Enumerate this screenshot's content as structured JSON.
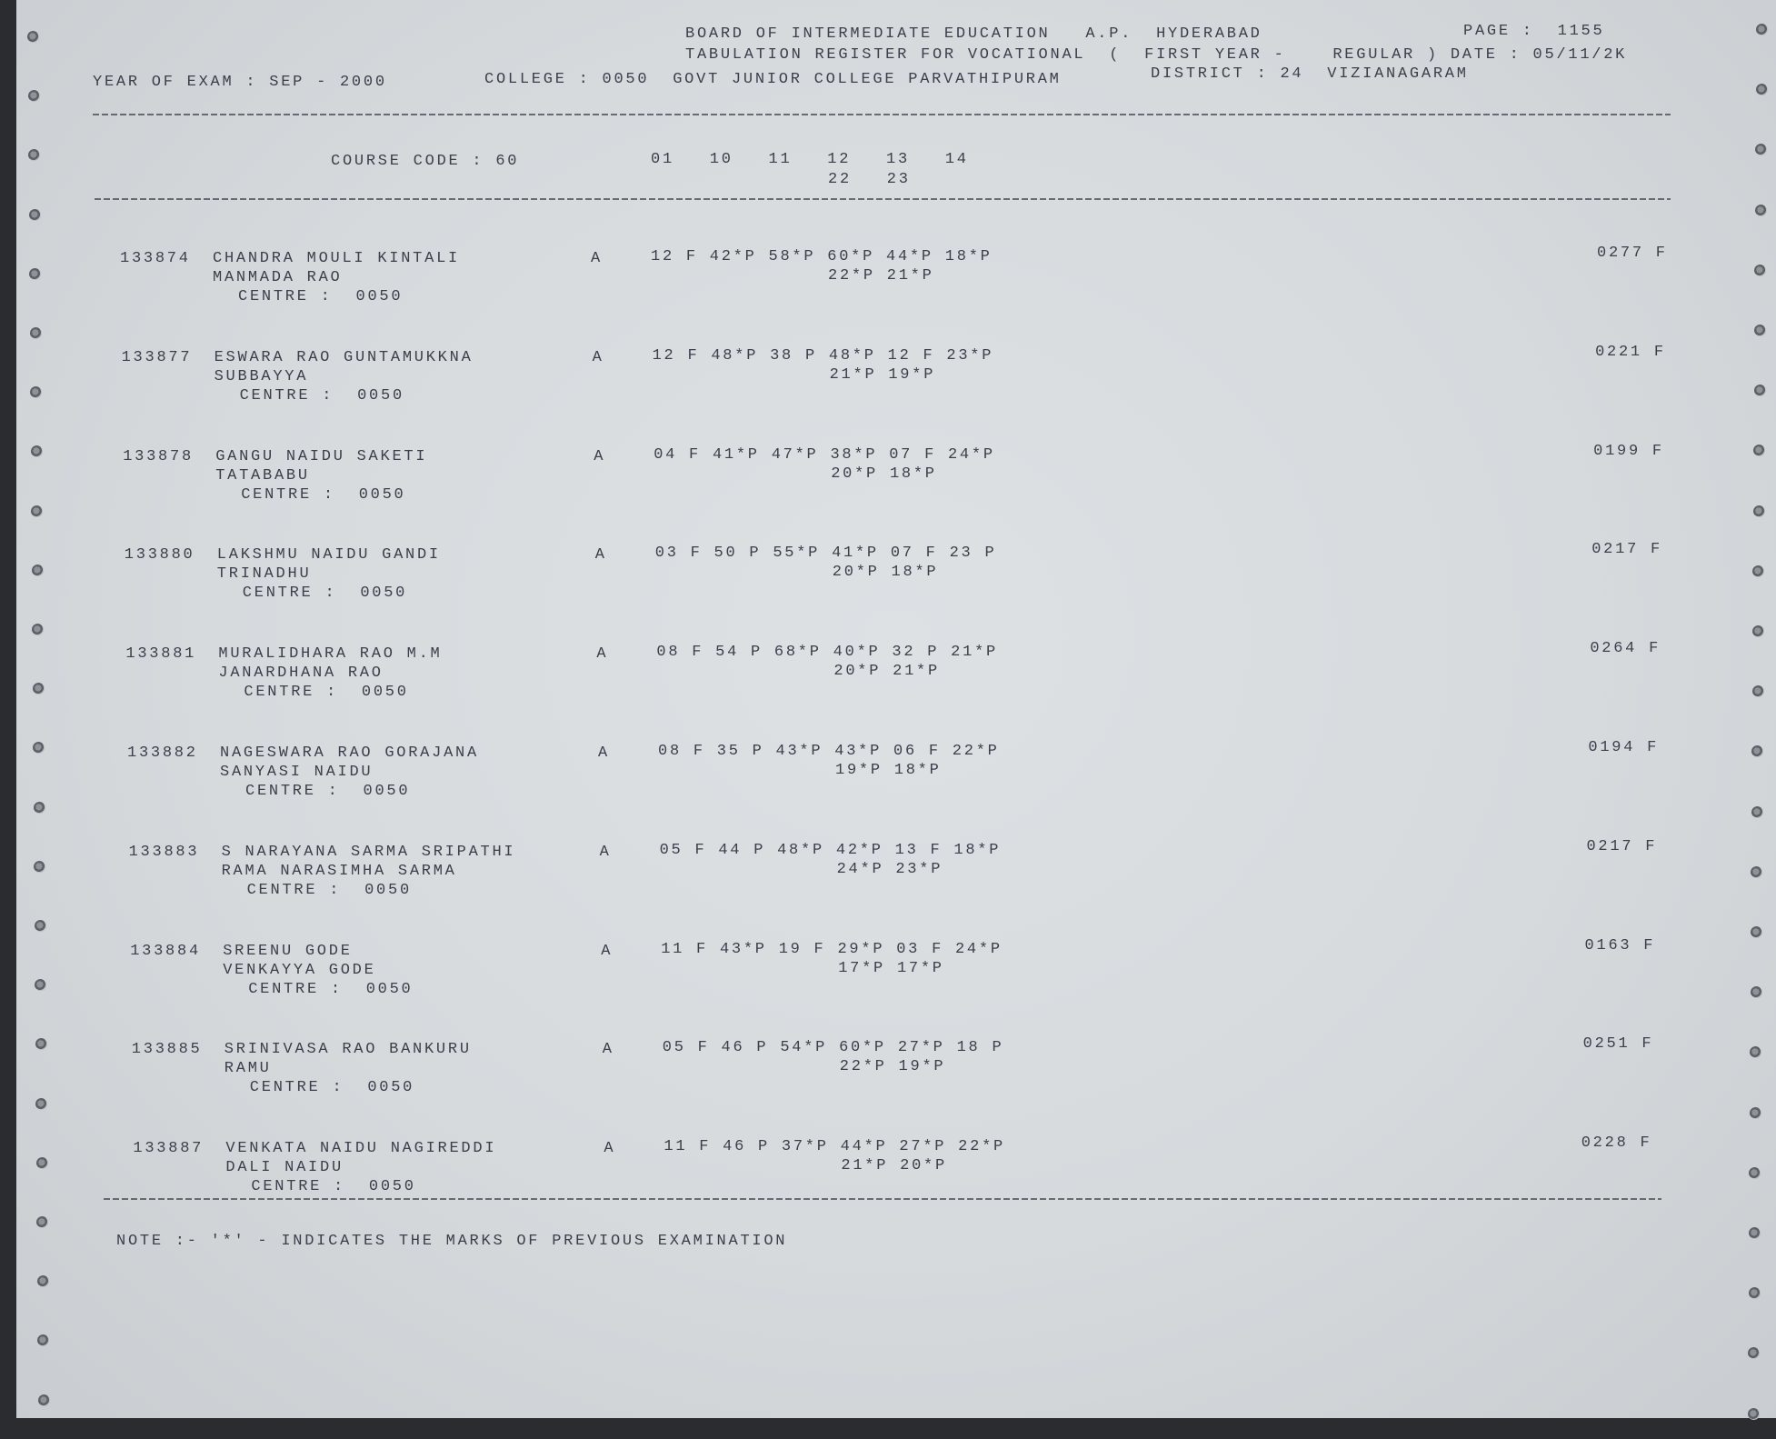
{
  "header": {
    "board": "BOARD OF INTERMEDIATE EDUCATION   A.P.  HYDERABAD",
    "page": "PAGE :  1155",
    "register": "TABULATION REGISTER FOR VOCATIONAL  (  FIRST YEAR -    REGULAR ) DATE : 05/11/2K",
    "year_of_exam": "YEAR OF EXAM : SEP - 2000",
    "college": "COLLEGE : 0050  GOVT JUNIOR COLLEGE PARVATHIPURAM",
    "district": "DISTRICT : 24  VIZIANAGARAM"
  },
  "columns": {
    "course_code": "COURSE CODE : 60",
    "subjects_line1": "01   10   11   12   13   14",
    "subjects_line2": "22   23"
  },
  "students": [
    {
      "roll": "133874",
      "name": "CHANDRA MOULI KINTALI",
      "father": "MANMADA RAO",
      "centre": "CENTRE :  0050",
      "grade": "A",
      "marks": "12 F 42*P 58*P 60*P 44*P 18*P",
      "marks2": "22*P 21*P",
      "total": "0277 F"
    },
    {
      "roll": "133877",
      "name": "ESWARA RAO GUNTAMUKKNA",
      "father": "SUBBAYYA",
      "centre": "CENTRE :  0050",
      "grade": "A",
      "marks": "12 F 48*P 38 P 48*P 12 F 23*P",
      "marks2": "21*P 19*P",
      "total": "0221 F"
    },
    {
      "roll": "133878",
      "name": "GANGU NAIDU SAKETI",
      "father": "TATABABU",
      "centre": "CENTRE :  0050",
      "grade": "A",
      "marks": "04 F 41*P 47*P 38*P 07 F 24*P",
      "marks2": "20*P 18*P",
      "total": "0199 F"
    },
    {
      "roll": "133880",
      "name": "LAKSHMU NAIDU GANDI",
      "father": "TRINADHU",
      "centre": "CENTRE :  0050",
      "grade": "A",
      "marks": "03 F 50 P 55*P 41*P 07 F 23 P",
      "marks2": "20*P 18*P",
      "total": "0217 F"
    },
    {
      "roll": "133881",
      "name": "MURALIDHARA RAO M.M",
      "father": "JANARDHANA RAO",
      "centre": "CENTRE :  0050",
      "grade": "A",
      "marks": "08 F 54 P 68*P 40*P 32 P 21*P",
      "marks2": "20*P 21*P",
      "total": "0264 F"
    },
    {
      "roll": "133882",
      "name": "NAGESWARA RAO GORAJANA",
      "father": "SANYASI NAIDU",
      "centre": "CENTRE :  0050",
      "grade": "A",
      "marks": "08 F 35 P 43*P 43*P 06 F 22*P",
      "marks2": "19*P 18*P",
      "total": "0194 F"
    },
    {
      "roll": "133883",
      "name": "S NARAYANA SARMA SRIPATHI",
      "father": "RAMA NARASIMHA SARMA",
      "centre": "CENTRE :  0050",
      "grade": "A",
      "marks": "05 F 44 P 48*P 42*P 13 F 18*P",
      "marks2": "24*P 23*P",
      "total": "0217 F"
    },
    {
      "roll": "133884",
      "name": "SREENU GODE",
      "father": "VENKAYYA GODE",
      "centre": "CENTRE :  0050",
      "grade": "A",
      "marks": "11 F 43*P 19 F 29*P 03 F 24*P",
      "marks2": "17*P 17*P",
      "total": "0163 F"
    },
    {
      "roll": "133885",
      "name": "SRINIVASA RAO BANKURU",
      "father": "RAMU",
      "centre": "CENTRE :  0050",
      "grade": "A",
      "marks": "05 F 46 P 54*P 60*P 27*P 18 P",
      "marks2": "22*P 19*P",
      "total": "0251 F"
    },
    {
      "roll": "133887",
      "name": "VENKATA NAIDU NAGIREDDI",
      "father": "DALI NAIDU",
      "centre": "CENTRE :  0050",
      "grade": "A",
      "marks": "11 F 46 P 37*P 44*P 27*P 22*P",
      "marks2": "21*P 20*P",
      "total": "0228 F"
    }
  ],
  "note": "NOTE :- '*' - INDICATES THE MARKS OF PREVIOUS EXAMINATION",
  "colors": {
    "ink": "#3b404c",
    "paper": "#d9dde0",
    "background": "#2a2c30"
  }
}
